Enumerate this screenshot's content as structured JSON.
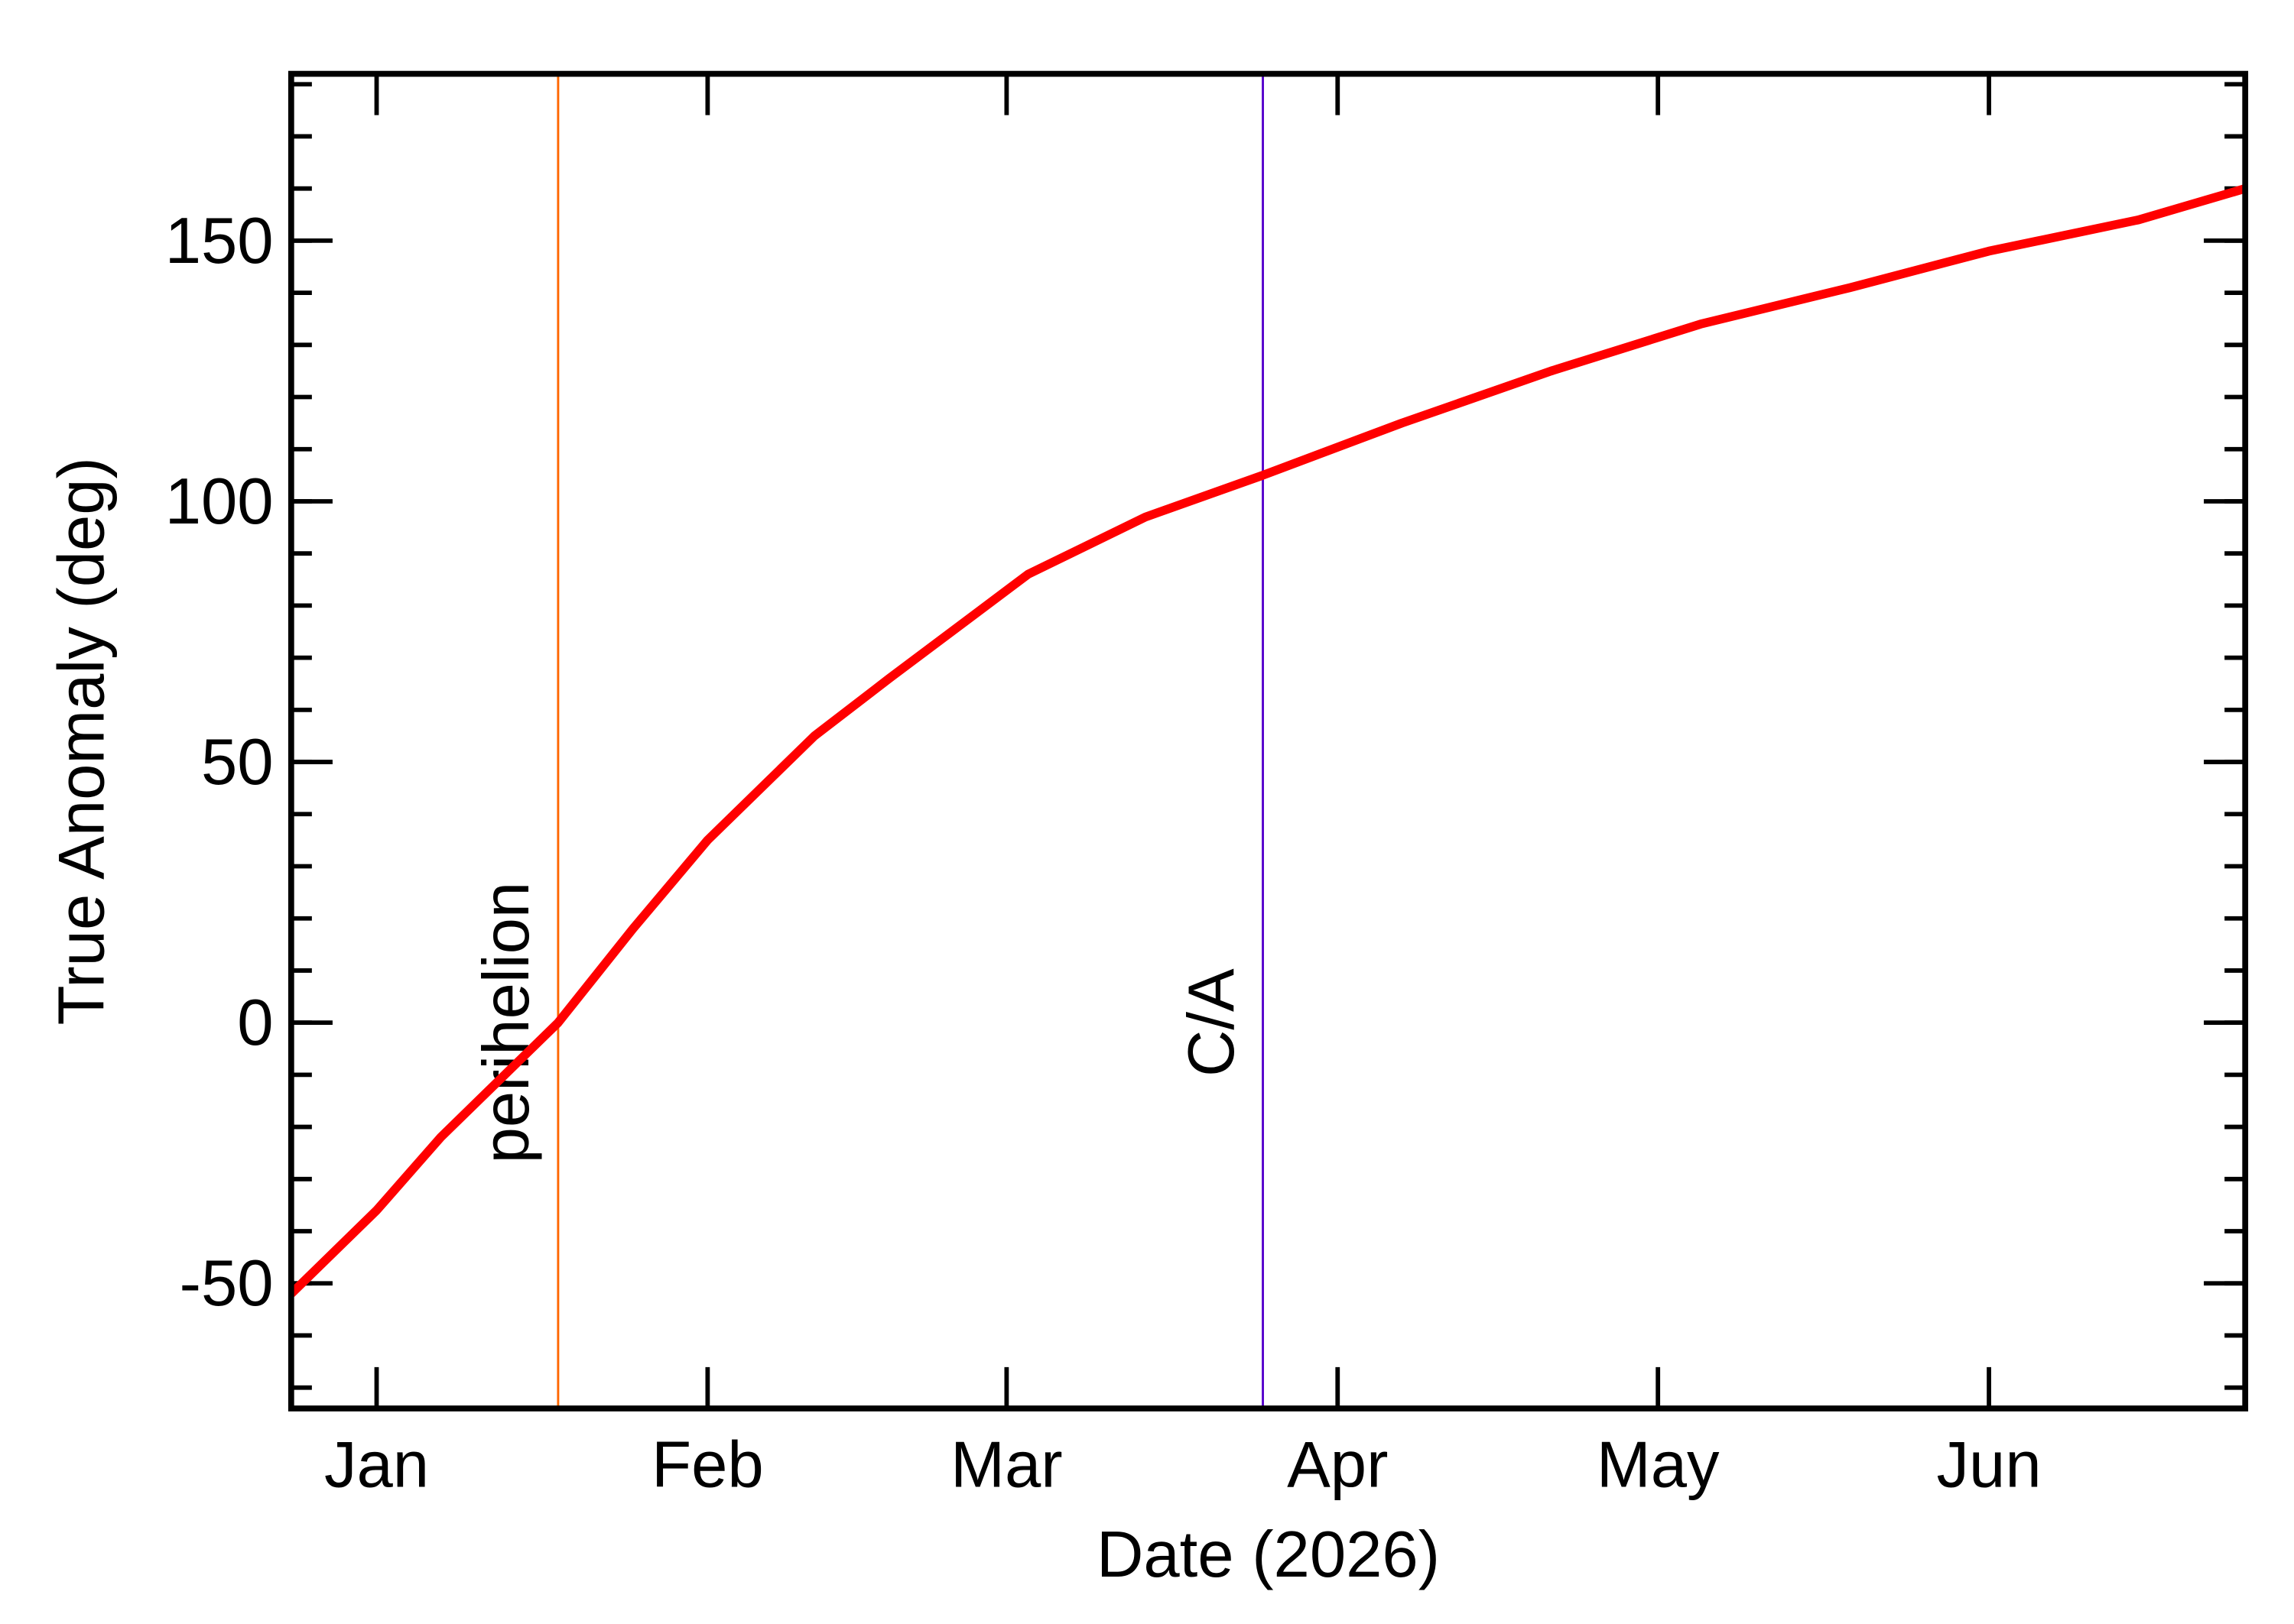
{
  "chart_data": {
    "type": "line",
    "x_label": "Date (2026)",
    "y_label": "True Anomaly (deg)",
    "x": [
      -8,
      0,
      6,
      17,
      24,
      31,
      41,
      48,
      61,
      72,
      83,
      96,
      110,
      124,
      138,
      151,
      165,
      175
    ],
    "series": [
      {
        "color": "#ff0000",
        "values": [
          -52,
          -36,
          -22,
          0,
          18,
          35,
          55,
          66,
          86,
          97,
          105,
          115,
          125,
          134,
          141,
          148,
          154,
          160
        ]
      }
    ],
    "xlim": [
      -8,
      175
    ],
    "xticks": [
      {
        "value": 0,
        "label": "Jan"
      },
      {
        "value": 31,
        "label": "Feb"
      },
      {
        "value": 59,
        "label": "Mar"
      },
      {
        "value": 90,
        "label": "Apr"
      },
      {
        "value": 120,
        "label": "May"
      },
      {
        "value": 151,
        "label": "Jun"
      }
    ],
    "ylim": [
      -74,
      182
    ],
    "yticks": [
      -50,
      0,
      50,
      100,
      150
    ],
    "annotations": [
      {
        "label": "perihelion",
        "x": 17,
        "color": "#ff6600"
      },
      {
        "label": "C/A",
        "x": 83,
        "color": "#5500cc"
      }
    ]
  }
}
